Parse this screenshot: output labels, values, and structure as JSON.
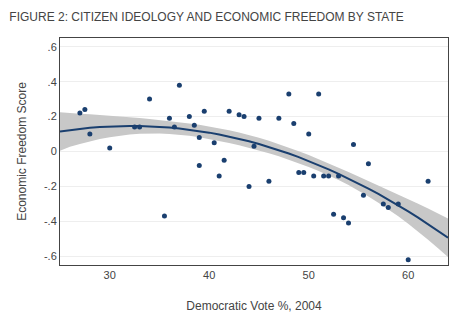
{
  "chart_data": {
    "type": "scatter",
    "title": "FIGURE 2: CITIZEN IDEOLOGY AND ECONOMIC FREEDOM BY STATE",
    "xlabel": "Democratic Vote %, 2004",
    "ylabel": "Economic Freedom Score",
    "xlim": [
      25,
      64
    ],
    "ylim": [
      -0.65,
      0.65
    ],
    "xticks": [
      30,
      40,
      50,
      60
    ],
    "yticks": [
      {
        "value": -0.6,
        "label": "-.6"
      },
      {
        "value": -0.4,
        "label": "-.4"
      },
      {
        "value": -0.2,
        "label": "-.2"
      },
      0,
      {
        "value": 0.2,
        "label": ".2"
      },
      {
        "value": 0.4,
        "label": ".4"
      },
      {
        "value": 0.6,
        "label": ".6"
      }
    ],
    "grid": "y",
    "series": [
      {
        "type": "scatter",
        "color": "#1a3f6f",
        "x": [
          27.0,
          27.5,
          28.0,
          30.0,
          32.5,
          33.0,
          34.0,
          35.5,
          36.0,
          36.5,
          37.0,
          38.0,
          38.5,
          39.0,
          39.0,
          39.5,
          40.5,
          41.0,
          41.5,
          42.0,
          43.0,
          43.5,
          44.0,
          44.5,
          45.0,
          46.0,
          47.0,
          48.0,
          48.5,
          49.0,
          49.5,
          50.0,
          50.5,
          51.0,
          51.5,
          52.0,
          52.5,
          53.0,
          53.5,
          54.0,
          54.5,
          55.5,
          56.0,
          57.5,
          58.0,
          59.0,
          60.0,
          62.0
        ],
        "values": [
          0.22,
          0.24,
          0.1,
          0.02,
          0.14,
          0.14,
          0.3,
          -0.37,
          0.19,
          0.14,
          0.38,
          0.2,
          0.15,
          0.08,
          -0.08,
          0.23,
          0.05,
          -0.14,
          -0.05,
          0.23,
          0.21,
          0.2,
          -0.2,
          0.03,
          0.19,
          -0.17,
          0.19,
          0.33,
          0.16,
          -0.12,
          -0.12,
          0.1,
          -0.14,
          0.33,
          -0.14,
          -0.14,
          -0.36,
          -0.14,
          -0.38,
          -0.41,
          0.04,
          -0.25,
          -0.07,
          -0.3,
          -0.32,
          -0.3,
          -0.62,
          -0.17
        ]
      },
      {
        "type": "band",
        "color": "#c8c8c8",
        "x": [
          25,
          26,
          27,
          28,
          29,
          30,
          31,
          32,
          33,
          34,
          35,
          36,
          37,
          38,
          39,
          40,
          41,
          42,
          43,
          44,
          45,
          46,
          47,
          48,
          49,
          50,
          51,
          52,
          53,
          54,
          55,
          56,
          57,
          58,
          59,
          60,
          61,
          62,
          63,
          64
        ],
        "lower": [
          0.0036,
          0.0266,
          0.0435,
          0.0584,
          0.0713,
          0.0821,
          0.0907,
          0.0971,
          0.1013,
          0.1032,
          0.1029,
          0.1005,
          0.096,
          0.0897,
          0.0817,
          0.0722,
          0.0613,
          0.0493,
          0.0361,
          0.0217,
          0.0063,
          -0.0102,
          -0.0278,
          -0.0466,
          -0.0667,
          -0.0881,
          -0.1112,
          -0.1361,
          -0.163,
          -0.192,
          -0.2234,
          -0.257,
          -0.2929,
          -0.3308,
          -0.3715,
          -0.414,
          -0.4586,
          -0.5052,
          -0.5539,
          -0.6045
        ],
        "upper": [
          0.2248,
          0.2188,
          0.2162,
          0.213,
          0.2095,
          0.2055,
          0.2011,
          0.1964,
          0.1913,
          0.186,
          0.1804,
          0.1745,
          0.168,
          0.1608,
          0.1528,
          0.1437,
          0.1335,
          0.122,
          0.109,
          0.0947,
          0.0789,
          0.0617,
          0.043,
          0.023,
          0.0018,
          -0.0206,
          -0.0439,
          -0.0679,
          -0.0925,
          -0.1174,
          -0.1426,
          -0.168,
          -0.1936,
          -0.2198,
          -0.2457,
          -0.2724,
          -0.2995,
          -0.3271,
          -0.3552,
          -0.3839
        ]
      },
      {
        "type": "line",
        "color": "#1a3f6f",
        "x": [
          25,
          26,
          27,
          28,
          29,
          30,
          31,
          32,
          33,
          34,
          35,
          36,
          37,
          38,
          39,
          40,
          41,
          42,
          43,
          44,
          45,
          46,
          47,
          48,
          49,
          50,
          51,
          52,
          53,
          54,
          55,
          56,
          57,
          58,
          59,
          60,
          61,
          62,
          63,
          64
        ],
        "values": [
          0.1142,
          0.1227,
          0.1298,
          0.1357,
          0.1404,
          0.1438,
          0.1459,
          0.1467,
          0.1463,
          0.1446,
          0.1417,
          0.1375,
          0.132,
          0.1252,
          0.1172,
          0.108,
          0.0974,
          0.0856,
          0.0725,
          0.0582,
          0.0426,
          0.0257,
          0.0076,
          -0.0118,
          -0.0324,
          -0.0544,
          -0.0776,
          -0.102,
          -0.1277,
          -0.1547,
          -0.183,
          -0.2125,
          -0.2433,
          -0.2753,
          -0.3086,
          -0.3432,
          -0.379,
          -0.4162,
          -0.4545,
          -0.4942
        ]
      }
    ]
  }
}
